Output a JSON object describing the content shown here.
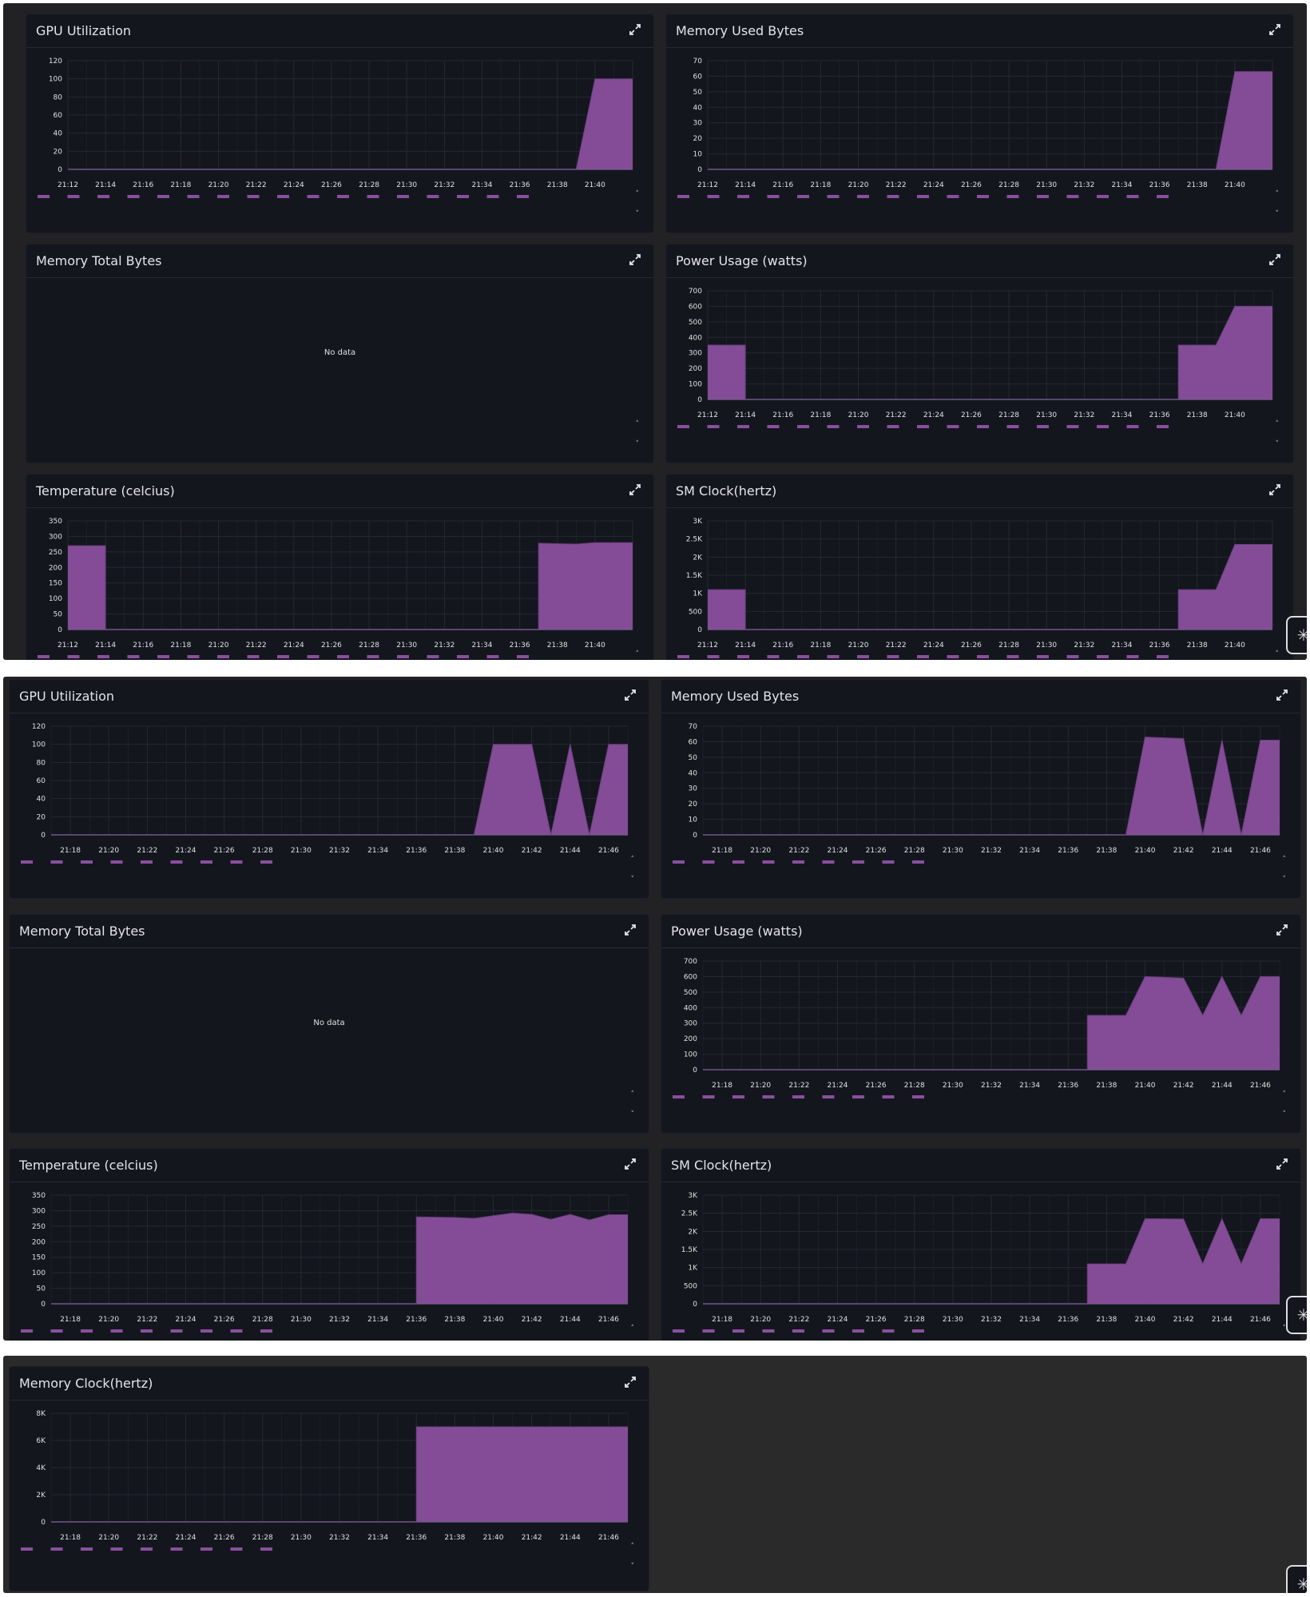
{
  "colors": {
    "series": "#8a4f9e",
    "panel_bg": "#14161e",
    "grid": "#252833",
    "text": "#e4e4e8"
  },
  "icons": {
    "expand": "expand-icon",
    "scroll_up": "chevron-up-icon",
    "scroll_down": "chevron-down-icon"
  },
  "no_data_text": "No data",
  "strips": [
    {
      "panels": [
        {
          "title": "GPU Utilization",
          "legend_count": 17,
          "chart_data": {
            "type": "area",
            "x_range": [
              12,
              42
            ],
            "x_ticks": [
              "21:12",
              "21:14",
              "21:16",
              "21:18",
              "21:20",
              "21:22",
              "21:24",
              "21:26",
              "21:28",
              "21:30",
              "21:32",
              "21:34",
              "21:36",
              "21:38",
              "21:40"
            ],
            "y_ticks": [
              "0",
              "20",
              "40",
              "60",
              "80",
              "100",
              "120"
            ],
            "ylim": [
              0,
              120
            ],
            "points": [
              [
                12,
                0
              ],
              [
                39,
                0
              ],
              [
                40,
                100
              ],
              [
                42,
                100
              ]
            ]
          }
        },
        {
          "title": "Memory Used Bytes",
          "legend_count": 17,
          "chart_data": {
            "type": "area",
            "x_range": [
              12,
              42
            ],
            "x_ticks": [
              "21:12",
              "21:14",
              "21:16",
              "21:18",
              "21:20",
              "21:22",
              "21:24",
              "21:26",
              "21:28",
              "21:30",
              "21:32",
              "21:34",
              "21:36",
              "21:38",
              "21:40"
            ],
            "y_ticks": [
              "0",
              "10",
              "20",
              "30",
              "40",
              "50",
              "60",
              "70"
            ],
            "ylim": [
              0,
              70
            ],
            "points": [
              [
                12,
                0
              ],
              [
                39,
                0
              ],
              [
                40,
                63
              ],
              [
                42,
                63
              ]
            ]
          }
        },
        {
          "title": "Memory Total Bytes",
          "no_data": true
        },
        {
          "title": "Power Usage (watts)",
          "legend_count": 17,
          "chart_data": {
            "type": "area",
            "x_range": [
              12,
              42
            ],
            "x_ticks": [
              "21:12",
              "21:14",
              "21:16",
              "21:18",
              "21:20",
              "21:22",
              "21:24",
              "21:26",
              "21:28",
              "21:30",
              "21:32",
              "21:34",
              "21:36",
              "21:38",
              "21:40"
            ],
            "y_ticks": [
              "0",
              "100",
              "200",
              "300",
              "400",
              "500",
              "600",
              "700"
            ],
            "ylim": [
              0,
              700
            ],
            "points": [
              [
                12,
                350
              ],
              [
                14,
                350
              ],
              [
                14,
                0
              ],
              [
                37,
                0
              ],
              [
                37,
                350
              ],
              [
                39,
                350
              ],
              [
                40,
                600
              ],
              [
                42,
                600
              ]
            ]
          }
        },
        {
          "title": "Temperature (celcius)",
          "legend_count": 17,
          "chart_data": {
            "type": "area",
            "x_range": [
              12,
              42
            ],
            "x_ticks": [
              "21:12",
              "21:14",
              "21:16",
              "21:18",
              "21:20",
              "21:22",
              "21:24",
              "21:26",
              "21:28",
              "21:30",
              "21:32",
              "21:34",
              "21:36",
              "21:38",
              "21:40"
            ],
            "y_ticks": [
              "0",
              "50",
              "100",
              "150",
              "200",
              "250",
              "300",
              "350"
            ],
            "ylim": [
              0,
              350
            ],
            "points": [
              [
                12,
                270
              ],
              [
                14,
                270
              ],
              [
                14,
                0
              ],
              [
                37,
                0
              ],
              [
                37,
                278
              ],
              [
                39,
                275
              ],
              [
                40,
                280
              ],
              [
                42,
                280
              ]
            ]
          }
        },
        {
          "title": "SM Clock(hertz)",
          "legend_count": 17,
          "chart_data": {
            "type": "area",
            "x_range": [
              12,
              42
            ],
            "x_ticks": [
              "21:12",
              "21:14",
              "21:16",
              "21:18",
              "21:20",
              "21:22",
              "21:24",
              "21:26",
              "21:28",
              "21:30",
              "21:32",
              "21:34",
              "21:36",
              "21:38",
              "21:40"
            ],
            "y_ticks": [
              "0",
              "500",
              "1K",
              "1.5K",
              "2K",
              "2.5K",
              "3K"
            ],
            "ylim": [
              0,
              3000
            ],
            "points": [
              [
                12,
                1100
              ],
              [
                14,
                1100
              ],
              [
                14,
                0
              ],
              [
                37,
                0
              ],
              [
                37,
                1100
              ],
              [
                39,
                1100
              ],
              [
                40,
                2350
              ],
              [
                42,
                2350
              ]
            ]
          }
        }
      ]
    },
    {
      "panels": [
        {
          "title": "GPU Utilization",
          "legend_count": 9,
          "chart_data": {
            "type": "area",
            "x_range": [
              17,
              47
            ],
            "x_ticks": [
              "21:18",
              "21:20",
              "21:22",
              "21:24",
              "21:26",
              "21:28",
              "21:30",
              "21:32",
              "21:34",
              "21:36",
              "21:38",
              "21:40",
              "21:42",
              "21:44",
              "21:46"
            ],
            "y_ticks": [
              "0",
              "20",
              "40",
              "60",
              "80",
              "100",
              "120"
            ],
            "ylim": [
              0,
              120
            ],
            "points": [
              [
                17,
                0
              ],
              [
                39,
                0
              ],
              [
                40,
                100
              ],
              [
                42,
                100
              ],
              [
                43,
                0
              ],
              [
                44,
                100
              ],
              [
                45,
                0
              ],
              [
                46,
                100
              ],
              [
                47,
                100
              ]
            ]
          }
        },
        {
          "title": "Memory Used Bytes",
          "legend_count": 9,
          "chart_data": {
            "type": "area",
            "x_range": [
              17,
              47
            ],
            "x_ticks": [
              "21:18",
              "21:20",
              "21:22",
              "21:24",
              "21:26",
              "21:28",
              "21:30",
              "21:32",
              "21:34",
              "21:36",
              "21:38",
              "21:40",
              "21:42",
              "21:44",
              "21:46"
            ],
            "y_ticks": [
              "0",
              "10",
              "20",
              "30",
              "40",
              "50",
              "60",
              "70"
            ],
            "ylim": [
              0,
              70
            ],
            "points": [
              [
                17,
                0
              ],
              [
                39,
                0
              ],
              [
                40,
                63
              ],
              [
                42,
                62
              ],
              [
                43,
                0
              ],
              [
                44,
                61
              ],
              [
                45,
                0
              ],
              [
                46,
                61
              ],
              [
                47,
                61
              ]
            ]
          }
        },
        {
          "title": "Memory Total Bytes",
          "no_data": true
        },
        {
          "title": "Power Usage (watts)",
          "legend_count": 9,
          "chart_data": {
            "type": "area",
            "x_range": [
              17,
              47
            ],
            "x_ticks": [
              "21:18",
              "21:20",
              "21:22",
              "21:24",
              "21:26",
              "21:28",
              "21:30",
              "21:32",
              "21:34",
              "21:36",
              "21:38",
              "21:40",
              "21:42",
              "21:44",
              "21:46"
            ],
            "y_ticks": [
              "0",
              "100",
              "200",
              "300",
              "400",
              "500",
              "600",
              "700"
            ],
            "ylim": [
              0,
              700
            ],
            "points": [
              [
                17,
                0
              ],
              [
                37,
                0
              ],
              [
                37,
                350
              ],
              [
                39,
                350
              ],
              [
                40,
                600
              ],
              [
                42,
                590
              ],
              [
                43,
                350
              ],
              [
                44,
                600
              ],
              [
                45,
                350
              ],
              [
                46,
                600
              ],
              [
                47,
                600
              ]
            ]
          }
        },
        {
          "title": "Temperature (celcius)",
          "legend_count": 9,
          "chart_data": {
            "type": "area",
            "x_range": [
              17,
              47
            ],
            "x_ticks": [
              "21:18",
              "21:20",
              "21:22",
              "21:24",
              "21:26",
              "21:28",
              "21:30",
              "21:32",
              "21:34",
              "21:36",
              "21:38",
              "21:40",
              "21:42",
              "21:44",
              "21:46"
            ],
            "y_ticks": [
              "0",
              "50",
              "100",
              "150",
              "200",
              "250",
              "300",
              "350"
            ],
            "ylim": [
              0,
              350
            ],
            "points": [
              [
                17,
                0
              ],
              [
                36,
                0
              ],
              [
                36,
                280
              ],
              [
                38,
                278
              ],
              [
                39,
                275
              ],
              [
                41,
                292
              ],
              [
                42,
                288
              ],
              [
                43,
                272
              ],
              [
                44,
                288
              ],
              [
                45,
                270
              ],
              [
                46,
                287
              ],
              [
                47,
                287
              ]
            ]
          }
        },
        {
          "title": "SM Clock(hertz)",
          "legend_count": 9,
          "chart_data": {
            "type": "area",
            "x_range": [
              17,
              47
            ],
            "x_ticks": [
              "21:18",
              "21:20",
              "21:22",
              "21:24",
              "21:26",
              "21:28",
              "21:30",
              "21:32",
              "21:34",
              "21:36",
              "21:38",
              "21:40",
              "21:42",
              "21:44",
              "21:46"
            ],
            "y_ticks": [
              "0",
              "500",
              "1K",
              "1.5K",
              "2K",
              "2.5K",
              "3K"
            ],
            "ylim": [
              0,
              3000
            ],
            "points": [
              [
                17,
                0
              ],
              [
                37,
                0
              ],
              [
                37,
                1100
              ],
              [
                39,
                1100
              ],
              [
                40,
                2350
              ],
              [
                42,
                2340
              ],
              [
                43,
                1100
              ],
              [
                44,
                2350
              ],
              [
                45,
                1100
              ],
              [
                46,
                2350
              ],
              [
                47,
                2350
              ]
            ]
          }
        }
      ]
    },
    {
      "panels": [
        {
          "title": "Memory Clock(hertz)",
          "legend_count": 9,
          "chart_data": {
            "type": "area",
            "x_range": [
              17,
              47
            ],
            "x_ticks": [
              "21:18",
              "21:20",
              "21:22",
              "21:24",
              "21:26",
              "21:28",
              "21:30",
              "21:32",
              "21:34",
              "21:36",
              "21:38",
              "21:40",
              "21:42",
              "21:44",
              "21:46"
            ],
            "y_ticks": [
              "0",
              "2K",
              "4K",
              "6K",
              "8K"
            ],
            "ylim": [
              0,
              8000
            ],
            "points": [
              [
                17,
                0
              ],
              [
                36,
                0
              ],
              [
                36,
                7000
              ],
              [
                47,
                7000
              ]
            ]
          }
        }
      ]
    }
  ]
}
